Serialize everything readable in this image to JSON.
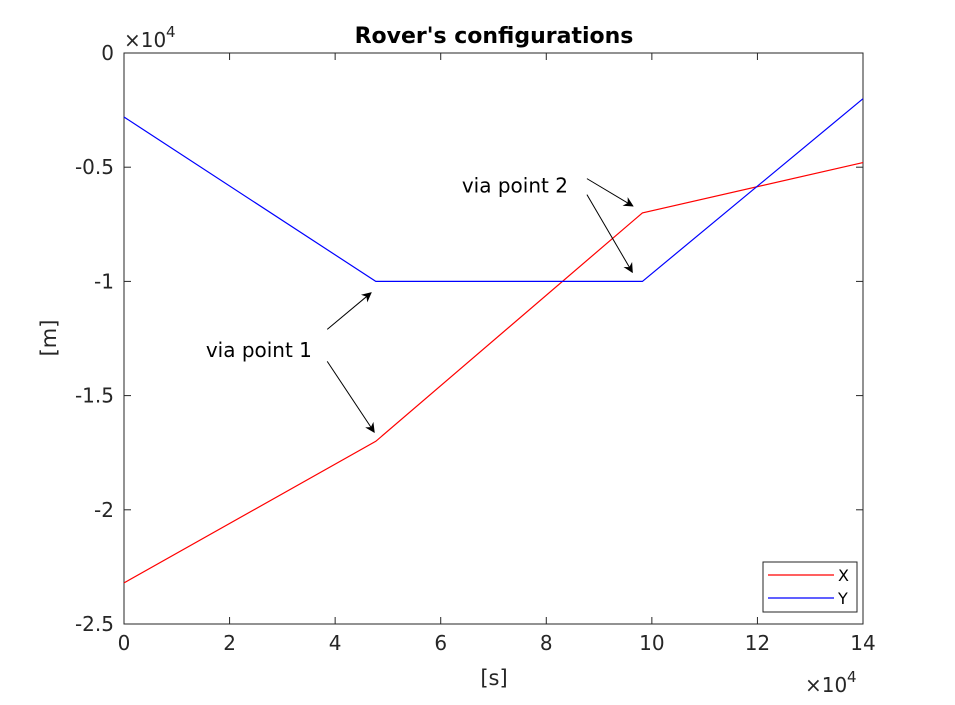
{
  "chart_data": {
    "type": "line",
    "title": "Rover's configurations",
    "xlabel": "[s]",
    "ylabel": "[m]",
    "x_exponent_label": "×10",
    "x_exponent_power": "4",
    "y_exponent_label": "×10",
    "y_exponent_power": "4",
    "xlim": [
      0,
      140000
    ],
    "ylim": [
      -25000,
      0
    ],
    "x_ticks": [
      0,
      20000,
      40000,
      60000,
      80000,
      100000,
      120000,
      140000
    ],
    "x_tick_labels": [
      "0",
      "2",
      "4",
      "6",
      "8",
      "10",
      "12",
      "14"
    ],
    "y_ticks": [
      0,
      -5000,
      -10000,
      -15000,
      -20000,
      -25000
    ],
    "y_tick_labels": [
      "0",
      "-0.5",
      "-1",
      "-1.5",
      "-2",
      "-2.5"
    ],
    "grid": false,
    "legend_position": "bottom-right",
    "series": [
      {
        "name": "X",
        "color": "#ff0000",
        "x": [
          0,
          47700,
          98200,
          140000
        ],
        "y": [
          -23200,
          -17000,
          -7000,
          -4800
        ]
      },
      {
        "name": "Y",
        "color": "#0000ff",
        "x": [
          0,
          47700,
          98200,
          140000
        ],
        "y": [
          -2800,
          -10000,
          -10000,
          -2000
        ]
      }
    ],
    "annotations": [
      {
        "text": "via point 1",
        "text_at": [
          15500,
          -13000
        ],
        "arrows": [
          {
            "from": [
              38500,
              -12100
            ],
            "to": [
              46800,
              -10500
            ]
          },
          {
            "from": [
              38500,
              -13500
            ],
            "to": [
              47400,
              -16600
            ]
          }
        ]
      },
      {
        "text": "via point 2",
        "text_at": [
          64000,
          -5800
        ],
        "arrows": [
          {
            "from": [
              87700,
              -5500
            ],
            "to": [
              96400,
              -6700
            ]
          },
          {
            "from": [
              87700,
              -6200
            ],
            "to": [
              96300,
              -9600
            ]
          }
        ]
      }
    ]
  }
}
